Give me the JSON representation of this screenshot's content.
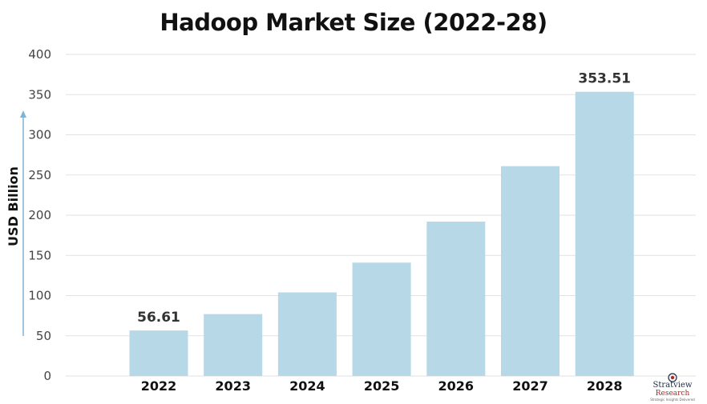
{
  "chart_data": {
    "type": "bar",
    "title": "Hadoop Market Size (2022-28)",
    "ylabel": "USD Billion",
    "xlabel": "",
    "categories": [
      "2022",
      "2023",
      "2024",
      "2025",
      "2026",
      "2027",
      "2028"
    ],
    "values": [
      56.61,
      77,
      104,
      141,
      192,
      261,
      353.51
    ],
    "data_labels": {
      "2022": "56.61",
      "2028": "353.51"
    },
    "ylim": [
      0,
      400
    ],
    "yticks": [
      "0",
      "50",
      "100",
      "150",
      "200",
      "250",
      "300",
      "350",
      "400"
    ],
    "grid": true,
    "legend": "none",
    "bar_color": "#b7d8e6",
    "arrow_color": "#7fb4d6"
  },
  "logo": {
    "brand_line1": "Stratview",
    "brand_line2": "Research",
    "tagline": "Strategic Insights Delivered"
  }
}
